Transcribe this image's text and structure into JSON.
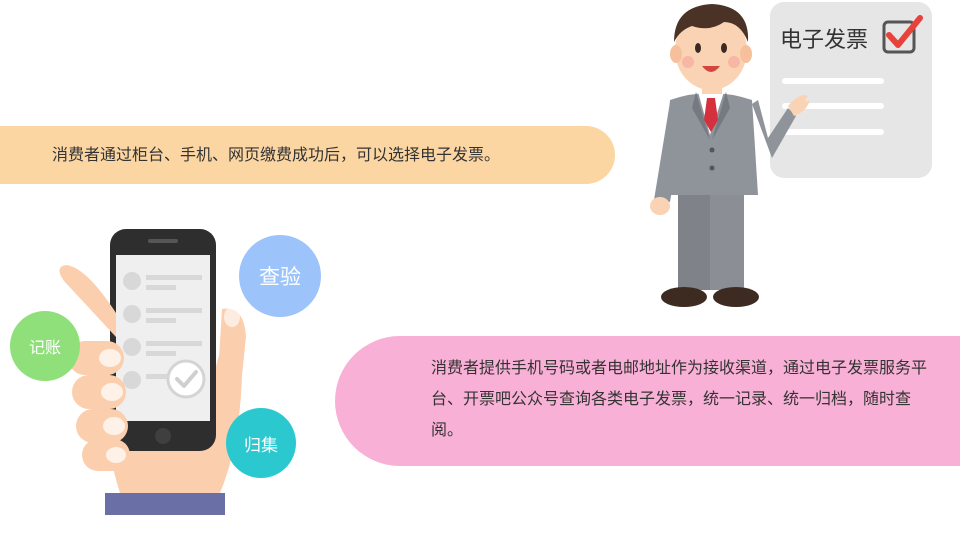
{
  "top_banner": {
    "text": "消费者通过柜台、手机、网页缴费成功后，可以选择电子发票。"
  },
  "document_card": {
    "title": "电子发票",
    "icon": "checkbox-check-icon"
  },
  "bubbles": {
    "check": "查验",
    "account": "记账",
    "collect": "归集"
  },
  "bottom_banner": {
    "text": "消费者提供手机号码或者电邮地址作为接收渠道，通过电子发票服务平台、开票吧公众号查询各类电子发票，统一记录、统一归档，随时查阅。"
  },
  "colors": {
    "top_banner": "#fbd6a2",
    "bottom_banner": "#f9b0d6",
    "bubble_check": "#9cc4fb",
    "bubble_account": "#8fe07a",
    "bubble_collect": "#2bc9cf",
    "check_mark": "#e8423c"
  }
}
